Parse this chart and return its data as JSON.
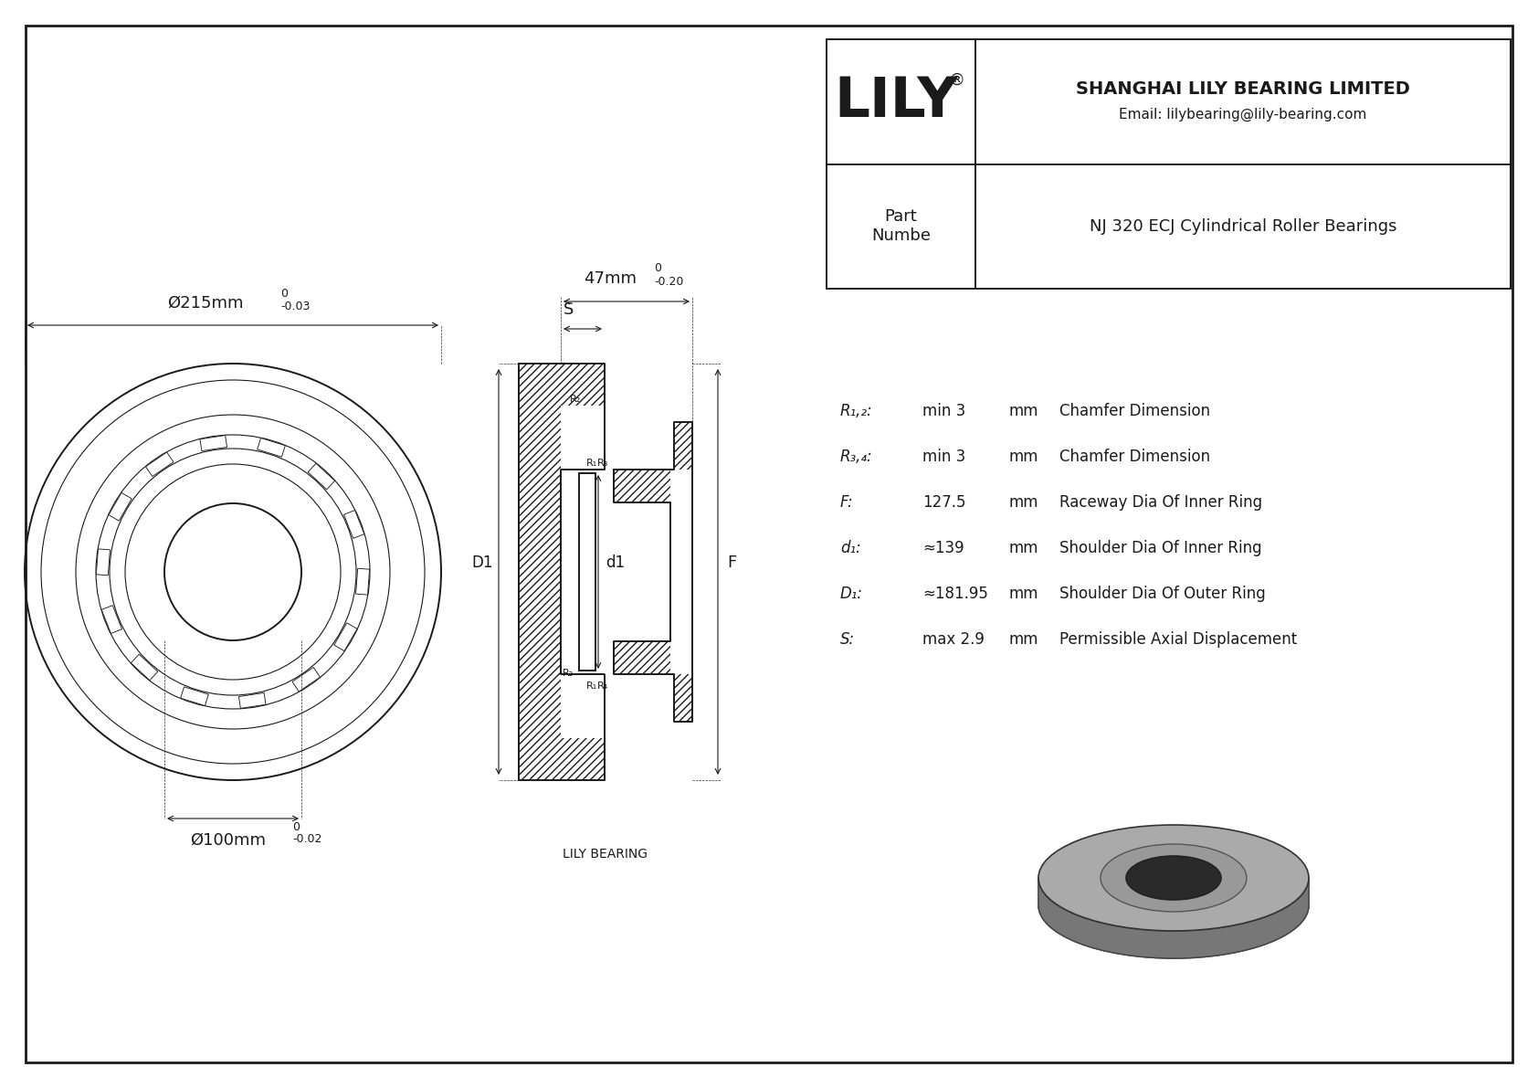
{
  "bg_color": "#ffffff",
  "line_color": "#1a1a1a",
  "title": "NJ 320 ECJ Cylindrical Roller Bearings",
  "company": "SHANGHAI LILY BEARING LIMITED",
  "email": "Email: lilybearing@lily-bearing.com",
  "part_label": "Part\nNumbe",
  "lily_logo": "LILY",
  "lily_registered": "®",
  "lily_bearing_label": "LILY BEARING",
  "dim_outer": "Ø215mm",
  "dim_outer_sup": "0",
  "dim_outer_tol": "-0.03",
  "dim_inner": "Ø100mm",
  "dim_inner_sup": "0",
  "dim_inner_tol": "-0.02",
  "dim_width": "47mm",
  "dim_width_sup": "0",
  "dim_width_tol": "-0.20",
  "params": [
    {
      "label": "R₁,₂:",
      "value": "min 3",
      "unit": "mm",
      "desc": "Chamfer Dimension"
    },
    {
      "label": "R₃,₄:",
      "value": "min 3",
      "unit": "mm",
      "desc": "Chamfer Dimension"
    },
    {
      "label": "F:",
      "value": "127.5",
      "unit": "mm",
      "desc": "Raceway Dia Of Inner Ring"
    },
    {
      "label": "d₁:",
      "value": "≈139",
      "unit": "mm",
      "desc": "Shoulder Dia Of Inner Ring"
    },
    {
      "label": "D₁:",
      "value": "≈181.95",
      "unit": "mm",
      "desc": "Shoulder Dia Of Outer Ring"
    },
    {
      "label": "S:",
      "value": "max 2.9",
      "unit": "mm",
      "desc": "Permissible Axial Displacement"
    }
  ]
}
